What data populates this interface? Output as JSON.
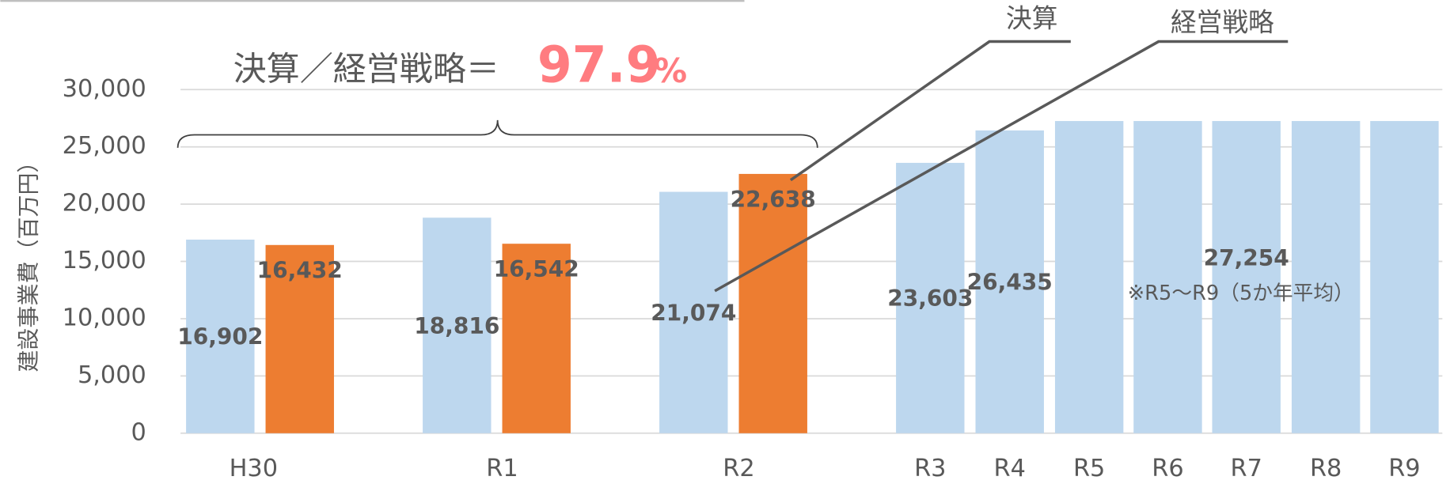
{
  "chart_data": {
    "type": "bar",
    "y_label": "建設事業費（百万円）",
    "categories": [
      "H30",
      "R1",
      "R2",
      "R3",
      "R4",
      "R5",
      "R6",
      "R7",
      "R8",
      "R9"
    ],
    "series": [
      {
        "name": "経営戦略",
        "color": "#bdd7ee",
        "values": [
          16902,
          18816,
          21074,
          23603,
          26435,
          27254,
          27254,
          27254,
          27254,
          27254
        ],
        "value_labels": [
          "16,902",
          "18,816",
          "21,074",
          "23,603",
          "26,435",
          null,
          null,
          "27,254",
          null,
          null
        ]
      },
      {
        "name": "決算",
        "color": "#ed7d31",
        "values": [
          16432,
          16542,
          22638,
          null,
          null,
          null,
          null,
          null,
          null,
          null
        ],
        "value_labels": [
          "16,432",
          "16,542",
          "22,638",
          null,
          null,
          null,
          null,
          null,
          null,
          null
        ]
      }
    ],
    "ylim": [
      0,
      30000
    ],
    "yticks": [
      0,
      {
        "value": 5000,
        "label": "5,000"
      },
      {
        "value": 10000,
        "label": "10,000"
      },
      {
        "value": 15000,
        "label": "15,000"
      },
      {
        "value": 20000,
        "label": "20,000"
      },
      {
        "value": 25000,
        "label": "25,000"
      },
      {
        "value": 30000,
        "label": "30,000"
      }
    ],
    "grid": true,
    "annotations": {
      "ratio_text": "決算／経営戦略＝",
      "ratio_number": "97.9",
      "ratio_unit": "%",
      "note": "※R5～R9（5か年平均）"
    }
  }
}
